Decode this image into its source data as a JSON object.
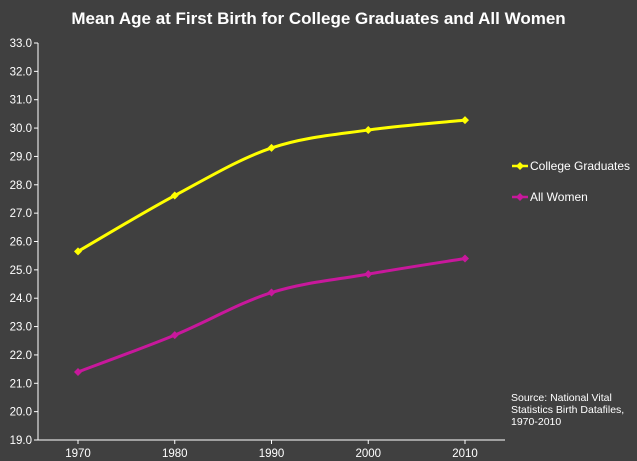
{
  "chart_data": {
    "type": "line",
    "title": "Mean Age at First Birth for College Graduates and All Women",
    "xlabel": "",
    "ylabel": "",
    "x": [
      1970,
      1980,
      1990,
      2000,
      2010
    ],
    "x_tick_labels": [
      "1970",
      "1980",
      "1990",
      "2000",
      "2010"
    ],
    "ylim": [
      19.0,
      33.0
    ],
    "y_tick_labels": [
      "19.0",
      "20.0",
      "21.0",
      "22.0",
      "23.0",
      "24.0",
      "25.0",
      "26.0",
      "27.0",
      "28.0",
      "29.0",
      "30.0",
      "31.0",
      "32.0",
      "33.0"
    ],
    "grid": false,
    "legend_position": "right",
    "series": [
      {
        "name": "College Graduates",
        "color": "#ffff00",
        "marker": "diamond",
        "values": [
          25.65,
          27.62,
          29.3,
          29.93,
          30.28
        ]
      },
      {
        "name": "All Women",
        "color": "#c8189c",
        "marker": "diamond",
        "values": [
          21.4,
          22.7,
          24.2,
          24.85,
          25.4
        ]
      }
    ],
    "annotation": "Source: National Vital Statistics Birth Datafiles, 1970-2010"
  }
}
